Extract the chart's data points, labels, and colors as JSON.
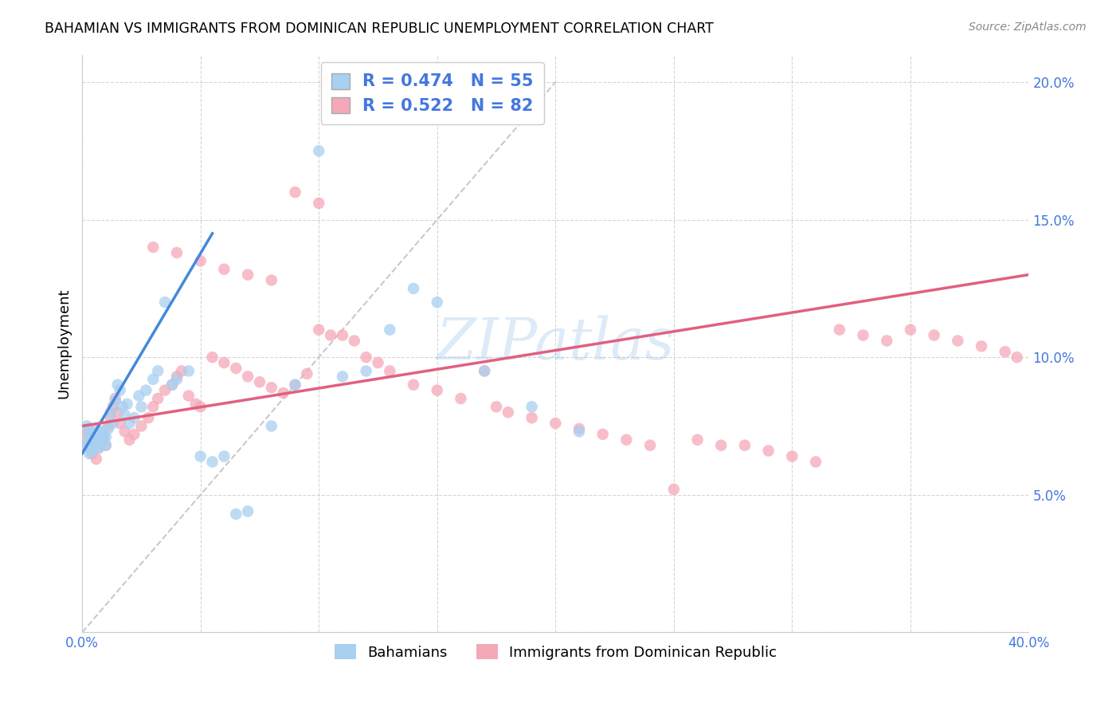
{
  "title": "BAHAMIAN VS IMMIGRANTS FROM DOMINICAN REPUBLIC UNEMPLOYMENT CORRELATION CHART",
  "source": "Source: ZipAtlas.com",
  "ylabel_label": "Unemployment",
  "xlim": [
    0.0,
    0.4
  ],
  "ylim": [
    0.0,
    0.21
  ],
  "x_ticks": [
    0.0,
    0.05,
    0.1,
    0.15,
    0.2,
    0.25,
    0.3,
    0.35,
    0.4
  ],
  "x_tick_labels": [
    "0.0%",
    "",
    "",
    "",
    "",
    "",
    "",
    "",
    "40.0%"
  ],
  "y_ticks": [
    0.0,
    0.05,
    0.1,
    0.15,
    0.2
  ],
  "y_tick_labels": [
    "",
    "5.0%",
    "10.0%",
    "15.0%",
    "20.0%"
  ],
  "bahamian_color": "#A8D0F0",
  "dominican_color": "#F5A8B8",
  "bahamian_line_color": "#4488DD",
  "dominican_line_color": "#E06080",
  "diagonal_color": "#C0C0C0",
  "legend_R_bahamian": "R = 0.474",
  "legend_N_bahamian": "N = 55",
  "legend_R_dominican": "R = 0.522",
  "legend_N_dominican": "N = 82",
  "legend_color": "#4477DD",
  "watermark": "ZIPatlas",
  "watermark_color": "#90C0E8",
  "bahamian_x": [
    0.001,
    0.002,
    0.002,
    0.003,
    0.003,
    0.004,
    0.004,
    0.005,
    0.005,
    0.006,
    0.006,
    0.007,
    0.007,
    0.008,
    0.008,
    0.009,
    0.009,
    0.01,
    0.01,
    0.011,
    0.012,
    0.013,
    0.014,
    0.015,
    0.016,
    0.017,
    0.018,
    0.019,
    0.02,
    0.022,
    0.024,
    0.025,
    0.027,
    0.03,
    0.032,
    0.035,
    0.038,
    0.04,
    0.045,
    0.05,
    0.055,
    0.06,
    0.065,
    0.07,
    0.08,
    0.09,
    0.1,
    0.11,
    0.12,
    0.13,
    0.14,
    0.15,
    0.17,
    0.19,
    0.21
  ],
  "bahamian_y": [
    0.07,
    0.075,
    0.068,
    0.073,
    0.065,
    0.071,
    0.066,
    0.069,
    0.072,
    0.068,
    0.074,
    0.071,
    0.067,
    0.073,
    0.069,
    0.072,
    0.07,
    0.071,
    0.068,
    0.074,
    0.08,
    0.076,
    0.084,
    0.09,
    0.088,
    0.082,
    0.079,
    0.083,
    0.076,
    0.078,
    0.086,
    0.082,
    0.088,
    0.092,
    0.095,
    0.12,
    0.09,
    0.092,
    0.095,
    0.064,
    0.062,
    0.064,
    0.043,
    0.044,
    0.075,
    0.09,
    0.175,
    0.093,
    0.095,
    0.11,
    0.125,
    0.12,
    0.095,
    0.082,
    0.073
  ],
  "dominican_x": [
    0.001,
    0.002,
    0.003,
    0.004,
    0.005,
    0.006,
    0.007,
    0.008,
    0.009,
    0.01,
    0.011,
    0.012,
    0.013,
    0.014,
    0.015,
    0.016,
    0.018,
    0.02,
    0.022,
    0.025,
    0.028,
    0.03,
    0.032,
    0.035,
    0.038,
    0.04,
    0.042,
    0.045,
    0.048,
    0.05,
    0.055,
    0.06,
    0.065,
    0.07,
    0.075,
    0.08,
    0.085,
    0.09,
    0.095,
    0.1,
    0.105,
    0.11,
    0.115,
    0.12,
    0.125,
    0.13,
    0.14,
    0.15,
    0.16,
    0.17,
    0.175,
    0.18,
    0.19,
    0.2,
    0.21,
    0.22,
    0.23,
    0.24,
    0.25,
    0.26,
    0.27,
    0.28,
    0.29,
    0.3,
    0.31,
    0.32,
    0.33,
    0.34,
    0.35,
    0.36,
    0.37,
    0.38,
    0.39,
    0.395,
    0.03,
    0.04,
    0.05,
    0.06,
    0.07,
    0.08,
    0.09,
    0.1
  ],
  "dominican_y": [
    0.068,
    0.072,
    0.074,
    0.065,
    0.069,
    0.063,
    0.067,
    0.07,
    0.071,
    0.068,
    0.075,
    0.078,
    0.082,
    0.085,
    0.08,
    0.076,
    0.073,
    0.07,
    0.072,
    0.075,
    0.078,
    0.082,
    0.085,
    0.088,
    0.09,
    0.093,
    0.095,
    0.086,
    0.083,
    0.082,
    0.1,
    0.098,
    0.096,
    0.093,
    0.091,
    0.089,
    0.087,
    0.09,
    0.094,
    0.11,
    0.108,
    0.108,
    0.106,
    0.1,
    0.098,
    0.095,
    0.09,
    0.088,
    0.085,
    0.095,
    0.082,
    0.08,
    0.078,
    0.076,
    0.074,
    0.072,
    0.07,
    0.068,
    0.052,
    0.07,
    0.068,
    0.068,
    0.066,
    0.064,
    0.062,
    0.11,
    0.108,
    0.106,
    0.11,
    0.108,
    0.106,
    0.104,
    0.102,
    0.1,
    0.14,
    0.138,
    0.135,
    0.132,
    0.13,
    0.128,
    0.16,
    0.156
  ]
}
